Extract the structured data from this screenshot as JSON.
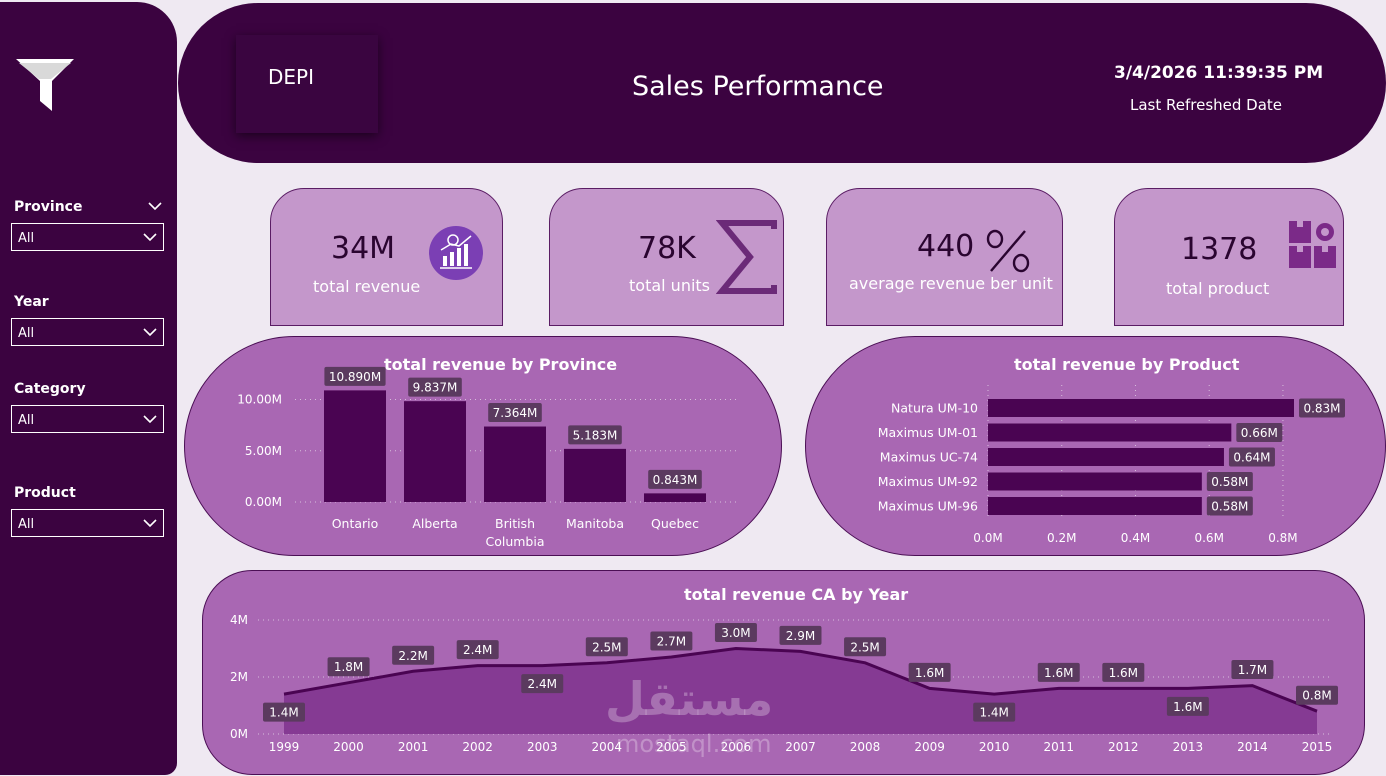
{
  "sidebar": {
    "filters": [
      {
        "label": "Province",
        "value": "All"
      },
      {
        "label": "Year",
        "value": "All"
      },
      {
        "label": "Category",
        "value": "All"
      },
      {
        "label": "Product",
        "value": "All"
      }
    ]
  },
  "header": {
    "logo_text": "DEPI",
    "title": "Sales Performance",
    "refresh_date": "3/4/2026 11:39:35 PM",
    "refresh_label": "Last Refreshed Date"
  },
  "kpis": [
    {
      "value": "34M",
      "label": "total revenue",
      "icon": "revenue-chart-icon"
    },
    {
      "value": "78K",
      "label": "total units",
      "icon": "sigma-icon"
    },
    {
      "value": "440",
      "label": "average revenue ber unit",
      "icon": "percent-icon"
    },
    {
      "value": "1378",
      "label": "total product",
      "icon": "boxes-gear-icon"
    }
  ],
  "watermark": {
    "arabic": "مستقل",
    "latin": "mostaql.com"
  },
  "colors": {
    "dark_purple": "#3b0340",
    "bar": "#4a0452",
    "panel": "#a967b3",
    "kpi": "#c497cb",
    "label_bg": "#5b3a5f"
  },
  "chart_data": [
    {
      "type": "bar",
      "title": "total revenue by Province",
      "categories": [
        "Ontario",
        "Alberta",
        "British Columbia",
        "Manitoba",
        "Quebec"
      ],
      "category_lines": [
        [
          "Ontario"
        ],
        [
          "Alberta"
        ],
        [
          "British",
          "Columbia"
        ],
        [
          "Manitoba"
        ],
        [
          "Quebec"
        ]
      ],
      "values": [
        10.89,
        9.837,
        7.364,
        5.183,
        0.843
      ],
      "data_labels": [
        "10.890M",
        "9.837M",
        "7.364M",
        "5.183M",
        "0.843M"
      ],
      "yticks": [
        0,
        5,
        10
      ],
      "ytick_labels": [
        "0.00M",
        "5.00M",
        "10.00M"
      ],
      "ylim": [
        0,
        12
      ],
      "unit": "M"
    },
    {
      "type": "bar",
      "orientation": "horizontal",
      "title": "total revenue by Product",
      "categories": [
        "Natura UM-10",
        "Maximus UM-01",
        "Maximus UC-74",
        "Maximus UM-92",
        "Maximus UM-96"
      ],
      "values": [
        0.83,
        0.66,
        0.64,
        0.58,
        0.58
      ],
      "data_labels": [
        "0.83M",
        "0.66M",
        "0.64M",
        "0.58M",
        "0.58M"
      ],
      "xticks": [
        0,
        0.2,
        0.4,
        0.6,
        0.8
      ],
      "xtick_labels": [
        "0.0M",
        "0.2M",
        "0.4M",
        "0.6M",
        "0.8M"
      ],
      "xlim": [
        0,
        0.83
      ]
    },
    {
      "type": "area",
      "title": "total revenue CA by Year",
      "x": [
        "1999",
        "2000",
        "2001",
        "2002",
        "2003",
        "2004",
        "2005",
        "2006",
        "2007",
        "2008",
        "2009",
        "2010",
        "2011",
        "2012",
        "2013",
        "2014",
        "2015"
      ],
      "values": [
        1.4,
        1.8,
        2.2,
        2.4,
        2.4,
        2.5,
        2.7,
        3.0,
        2.9,
        2.5,
        1.6,
        1.4,
        1.6,
        1.6,
        1.6,
        1.7,
        0.8
      ],
      "data_labels": [
        "1.4M",
        "1.8M",
        "2.2M",
        "2.4M",
        "2.4M",
        "2.5M",
        "2.7M",
        "3.0M",
        "2.9M",
        "2.5M",
        "1.6M",
        "1.4M",
        "1.6M",
        "1.6M",
        "1.6M",
        "1.7M",
        "0.8M"
      ],
      "label_positions": [
        "below",
        "above",
        "above",
        "above",
        "below",
        "above",
        "above",
        "above",
        "above",
        "above",
        "above",
        "below",
        "above",
        "above",
        "below",
        "above",
        "above"
      ],
      "yticks": [
        0,
        2,
        4
      ],
      "ytick_labels": [
        "0M",
        "2M",
        "4M"
      ],
      "ylim": [
        0,
        4
      ]
    }
  ]
}
